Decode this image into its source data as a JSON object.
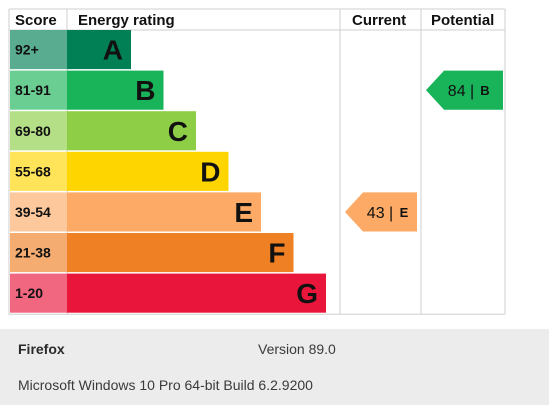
{
  "chart_data": {
    "type": "table",
    "headers": {
      "score": "Score",
      "rating": "Energy rating",
      "current": "Current",
      "potential": "Potential"
    },
    "bands": [
      {
        "score": "92+",
        "letter": "A",
        "color": "#008054"
      },
      {
        "score": "81-91",
        "letter": "B",
        "color": "#19b459"
      },
      {
        "score": "69-80",
        "letter": "C",
        "color": "#8dce46"
      },
      {
        "score": "55-68",
        "letter": "D",
        "color": "#ffd500"
      },
      {
        "score": "39-54",
        "letter": "E",
        "color": "#fcaa65"
      },
      {
        "score": "21-38",
        "letter": "F",
        "color": "#ef8023"
      },
      {
        "score": "1-20",
        "letter": "G",
        "color": "#e9153b"
      }
    ],
    "current": {
      "value": 43,
      "letter": "E",
      "color": "#fcaa65"
    },
    "potential": {
      "value": 84,
      "letter": "B",
      "color": "#19b459"
    }
  },
  "info": {
    "browser": "Firefox",
    "version": "Version 89.0",
    "os": "Microsoft Windows 10 Pro 64-bit Build 6.2.9200"
  }
}
